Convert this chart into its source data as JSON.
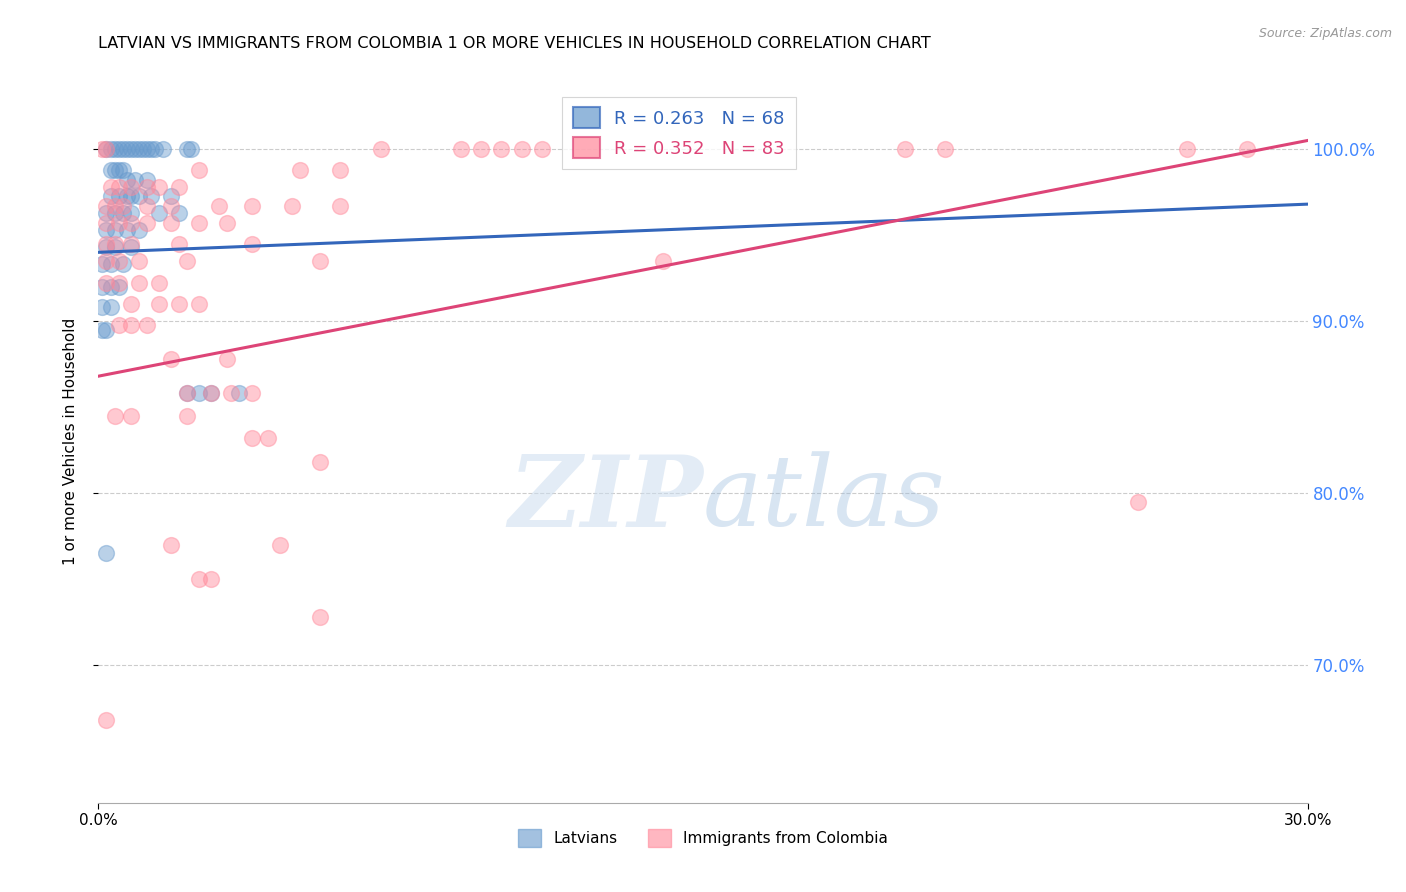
{
  "title": "LATVIAN VS IMMIGRANTS FROM COLOMBIA 1 OR MORE VEHICLES IN HOUSEHOLD CORRELATION CHART",
  "source": "Source: ZipAtlas.com",
  "ylabel": "1 or more Vehicles in Household",
  "ytick_labels": [
    "100.0%",
    "90.0%",
    "80.0%",
    "70.0%"
  ],
  "ytick_values": [
    1.0,
    0.9,
    0.8,
    0.7
  ],
  "xmin": 0.0,
  "xmax": 0.3,
  "ymin": 0.62,
  "ymax": 1.04,
  "blue_R": 0.263,
  "blue_N": 68,
  "pink_R": 0.352,
  "pink_N": 83,
  "blue_line_x": [
    0.0,
    0.3
  ],
  "blue_line_y": [
    0.94,
    0.968
  ],
  "pink_line_x": [
    0.0,
    0.3
  ],
  "pink_line_y": [
    0.868,
    1.005
  ],
  "blue_color": "#6699CC",
  "pink_color": "#FF8899",
  "blue_scatter": [
    [
      0.002,
      1.0
    ],
    [
      0.003,
      1.0
    ],
    [
      0.004,
      1.0
    ],
    [
      0.005,
      1.0
    ],
    [
      0.006,
      1.0
    ],
    [
      0.007,
      1.0
    ],
    [
      0.008,
      1.0
    ],
    [
      0.009,
      1.0
    ],
    [
      0.01,
      1.0
    ],
    [
      0.011,
      1.0
    ],
    [
      0.012,
      1.0
    ],
    [
      0.013,
      1.0
    ],
    [
      0.014,
      1.0
    ],
    [
      0.016,
      1.0
    ],
    [
      0.022,
      1.0
    ],
    [
      0.023,
      1.0
    ],
    [
      0.003,
      0.988
    ],
    [
      0.004,
      0.988
    ],
    [
      0.005,
      0.988
    ],
    [
      0.006,
      0.988
    ],
    [
      0.007,
      0.982
    ],
    [
      0.009,
      0.982
    ],
    [
      0.012,
      0.982
    ],
    [
      0.003,
      0.973
    ],
    [
      0.005,
      0.973
    ],
    [
      0.007,
      0.973
    ],
    [
      0.008,
      0.973
    ],
    [
      0.01,
      0.973
    ],
    [
      0.013,
      0.973
    ],
    [
      0.018,
      0.973
    ],
    [
      0.002,
      0.963
    ],
    [
      0.004,
      0.963
    ],
    [
      0.006,
      0.963
    ],
    [
      0.008,
      0.963
    ],
    [
      0.015,
      0.963
    ],
    [
      0.02,
      0.963
    ],
    [
      0.002,
      0.953
    ],
    [
      0.004,
      0.953
    ],
    [
      0.007,
      0.953
    ],
    [
      0.01,
      0.953
    ],
    [
      0.002,
      0.943
    ],
    [
      0.004,
      0.943
    ],
    [
      0.008,
      0.943
    ],
    [
      0.001,
      0.933
    ],
    [
      0.003,
      0.933
    ],
    [
      0.006,
      0.933
    ],
    [
      0.001,
      0.92
    ],
    [
      0.003,
      0.92
    ],
    [
      0.005,
      0.92
    ],
    [
      0.001,
      0.908
    ],
    [
      0.003,
      0.908
    ],
    [
      0.001,
      0.895
    ],
    [
      0.002,
      0.895
    ],
    [
      0.022,
      0.858
    ],
    [
      0.025,
      0.858
    ],
    [
      0.028,
      0.858
    ],
    [
      0.035,
      0.858
    ],
    [
      0.002,
      0.765
    ]
  ],
  "pink_scatter": [
    [
      0.001,
      1.0
    ],
    [
      0.002,
      1.0
    ],
    [
      0.07,
      1.0
    ],
    [
      0.09,
      1.0
    ],
    [
      0.095,
      1.0
    ],
    [
      0.1,
      1.0
    ],
    [
      0.105,
      1.0
    ],
    [
      0.11,
      1.0
    ],
    [
      0.2,
      1.0
    ],
    [
      0.21,
      1.0
    ],
    [
      0.27,
      1.0
    ],
    [
      0.285,
      1.0
    ],
    [
      0.025,
      0.988
    ],
    [
      0.05,
      0.988
    ],
    [
      0.06,
      0.988
    ],
    [
      0.003,
      0.978
    ],
    [
      0.005,
      0.978
    ],
    [
      0.008,
      0.978
    ],
    [
      0.012,
      0.978
    ],
    [
      0.015,
      0.978
    ],
    [
      0.02,
      0.978
    ],
    [
      0.002,
      0.967
    ],
    [
      0.004,
      0.967
    ],
    [
      0.006,
      0.967
    ],
    [
      0.012,
      0.967
    ],
    [
      0.018,
      0.967
    ],
    [
      0.03,
      0.967
    ],
    [
      0.038,
      0.967
    ],
    [
      0.048,
      0.967
    ],
    [
      0.06,
      0.967
    ],
    [
      0.002,
      0.957
    ],
    [
      0.005,
      0.957
    ],
    [
      0.008,
      0.957
    ],
    [
      0.012,
      0.957
    ],
    [
      0.018,
      0.957
    ],
    [
      0.025,
      0.957
    ],
    [
      0.032,
      0.957
    ],
    [
      0.002,
      0.945
    ],
    [
      0.004,
      0.945
    ],
    [
      0.008,
      0.945
    ],
    [
      0.02,
      0.945
    ],
    [
      0.038,
      0.945
    ],
    [
      0.002,
      0.935
    ],
    [
      0.005,
      0.935
    ],
    [
      0.01,
      0.935
    ],
    [
      0.022,
      0.935
    ],
    [
      0.055,
      0.935
    ],
    [
      0.14,
      0.935
    ],
    [
      0.002,
      0.922
    ],
    [
      0.005,
      0.922
    ],
    [
      0.01,
      0.922
    ],
    [
      0.015,
      0.922
    ],
    [
      0.008,
      0.91
    ],
    [
      0.015,
      0.91
    ],
    [
      0.02,
      0.91
    ],
    [
      0.025,
      0.91
    ],
    [
      0.005,
      0.898
    ],
    [
      0.008,
      0.898
    ],
    [
      0.012,
      0.898
    ],
    [
      0.018,
      0.878
    ],
    [
      0.032,
      0.878
    ],
    [
      0.022,
      0.858
    ],
    [
      0.028,
      0.858
    ],
    [
      0.033,
      0.858
    ],
    [
      0.038,
      0.858
    ],
    [
      0.004,
      0.845
    ],
    [
      0.008,
      0.845
    ],
    [
      0.022,
      0.845
    ],
    [
      0.038,
      0.832
    ],
    [
      0.042,
      0.832
    ],
    [
      0.055,
      0.818
    ],
    [
      0.258,
      0.795
    ],
    [
      0.018,
      0.77
    ],
    [
      0.045,
      0.77
    ],
    [
      0.025,
      0.75
    ],
    [
      0.028,
      0.75
    ],
    [
      0.055,
      0.728
    ],
    [
      0.002,
      0.668
    ]
  ],
  "watermark_zip": "ZIP",
  "watermark_atlas": "atlas",
  "legend_labels": [
    "Latvians",
    "Immigrants from Colombia"
  ]
}
